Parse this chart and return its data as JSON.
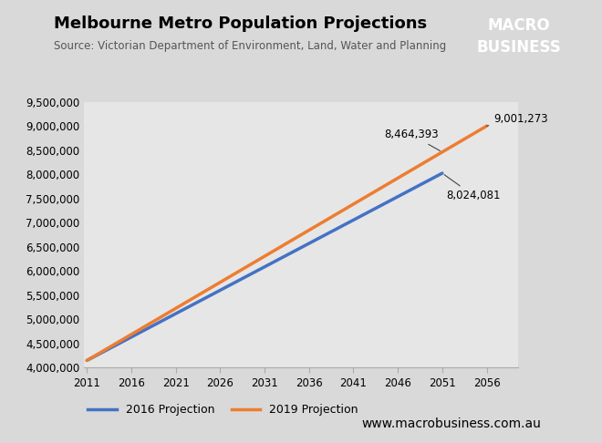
{
  "title": "Melbourne Metro Population Projections",
  "source": "Source: Victorian Department of Environment, Land, Water and Planning",
  "website": "www.macrobusiness.com.au",
  "x_start": 2011,
  "x_end": 2056,
  "x_ticks": [
    2011,
    2016,
    2021,
    2026,
    2031,
    2036,
    2041,
    2046,
    2051,
    2056
  ],
  "y_min": 4000000,
  "y_max": 9500000,
  "y_ticks": [
    4000000,
    4500000,
    5000000,
    5500000,
    6000000,
    6500000,
    7000000,
    7500000,
    8000000,
    8500000,
    9000000,
    9500000
  ],
  "proj_2016": {
    "label": "2016 Projection",
    "color": "#4472C4",
    "x": [
      2011,
      2051
    ],
    "y": [
      4150000,
      8024081
    ]
  },
  "proj_2019": {
    "label": "2019 Projection",
    "color": "#ED7D31",
    "x": [
      2011,
      2056
    ],
    "y": [
      4150000,
      9001273
    ]
  },
  "orange_at_2051_label": "8,464,393",
  "orange_at_2051_value": 8464393,
  "blue_at_2051_label": "8,024,081",
  "blue_at_2051_value": 8024081,
  "orange_at_2056_label": "9,001,273",
  "orange_at_2056_value": 9001273,
  "bg_color": "#d9d9d9",
  "plot_bg_color": "#e6e6e6",
  "logo_bg_color": "#cc0000",
  "logo_text1": "MACRO",
  "logo_text2": "BUSINESS",
  "line_width": 2.5,
  "title_fontsize": 13,
  "source_fontsize": 8.5,
  "tick_fontsize": 8.5,
  "legend_fontsize": 9,
  "website_fontsize": 10,
  "annot_fontsize": 8.5
}
